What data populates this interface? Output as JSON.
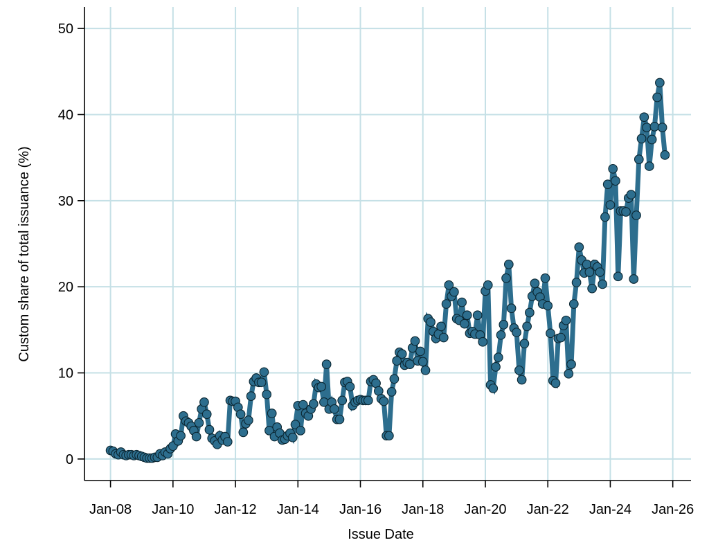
{
  "chart_data": {
    "type": "line",
    "title": "",
    "xlabel": "Issue Date",
    "ylabel": "Custom share of total issuance (%)",
    "xlim": [
      "2007-03",
      "2026-08"
    ],
    "ylim": [
      -2.5,
      52.5
    ],
    "y_ticks": [
      0,
      10,
      20,
      30,
      40,
      50
    ],
    "x_ticks": [
      {
        "date": "2008-01",
        "label": "Jan-08"
      },
      {
        "date": "2010-01",
        "label": "Jan-10"
      },
      {
        "date": "2012-01",
        "label": "Jan-12"
      },
      {
        "date": "2014-01",
        "label": "Jan-14"
      },
      {
        "date": "2016-01",
        "label": "Jan-16"
      },
      {
        "date": "2018-01",
        "label": "Jan-18"
      },
      {
        "date": "2020-01",
        "label": "Jan-20"
      },
      {
        "date": "2022-01",
        "label": "Jan-22"
      },
      {
        "date": "2024-01",
        "label": "Jan-24"
      },
      {
        "date": "2026-01",
        "label": "Jan-26"
      }
    ],
    "grid": true,
    "legend": "none",
    "series": [
      {
        "color": "#2d6e8e",
        "marker": "circle",
        "points": [
          [
            "2008-01",
            1.0
          ],
          [
            "2008-02",
            0.9
          ],
          [
            "2008-03",
            0.6
          ],
          [
            "2008-04",
            0.5
          ],
          [
            "2008-05",
            0.8
          ],
          [
            "2008-06",
            0.5
          ],
          [
            "2008-07",
            0.4
          ],
          [
            "2008-08",
            0.5
          ],
          [
            "2008-09",
            0.5
          ],
          [
            "2008-10",
            0.4
          ],
          [
            "2008-11",
            0.5
          ],
          [
            "2008-12",
            0.4
          ],
          [
            "2009-01",
            0.3
          ],
          [
            "2009-02",
            0.2
          ],
          [
            "2009-03",
            0.1
          ],
          [
            "2009-04",
            0.1
          ],
          [
            "2009-05",
            0.1
          ],
          [
            "2009-06",
            0.2
          ],
          [
            "2009-07",
            0.2
          ],
          [
            "2009-08",
            0.6
          ],
          [
            "2009-09",
            0.4
          ],
          [
            "2009-10",
            0.8
          ],
          [
            "2009-11",
            0.6
          ],
          [
            "2009-12",
            1.2
          ],
          [
            "2010-01",
            1.5
          ],
          [
            "2010-02",
            2.9
          ],
          [
            "2010-03",
            2.1
          ],
          [
            "2010-04",
            2.7
          ],
          [
            "2010-05",
            5.0
          ],
          [
            "2010-06",
            4.4
          ],
          [
            "2010-07",
            4.2
          ],
          [
            "2010-08",
            3.8
          ],
          [
            "2010-09",
            3.3
          ],
          [
            "2010-10",
            2.6
          ],
          [
            "2010-11",
            4.2
          ],
          [
            "2010-12",
            5.8
          ],
          [
            "2011-01",
            6.6
          ],
          [
            "2011-02",
            5.2
          ],
          [
            "2011-03",
            3.4
          ],
          [
            "2011-04",
            2.4
          ],
          [
            "2011-05",
            2.1
          ],
          [
            "2011-06",
            1.7
          ],
          [
            "2011-07",
            2.7
          ],
          [
            "2011-08",
            2.2
          ],
          [
            "2011-09",
            2.6
          ],
          [
            "2011-10",
            2.0
          ],
          [
            "2011-11",
            6.8
          ],
          [
            "2011-12",
            6.7
          ],
          [
            "2012-01",
            6.7
          ],
          [
            "2012-02",
            6.0
          ],
          [
            "2012-03",
            5.2
          ],
          [
            "2012-04",
            3.1
          ],
          [
            "2012-05",
            4.1
          ],
          [
            "2012-06",
            4.5
          ],
          [
            "2012-07",
            7.3
          ],
          [
            "2012-08",
            9.0
          ],
          [
            "2012-09",
            9.4
          ],
          [
            "2012-10",
            8.9
          ],
          [
            "2012-11",
            8.9
          ],
          [
            "2012-12",
            10.1
          ],
          [
            "2013-01",
            7.5
          ],
          [
            "2013-02",
            3.3
          ],
          [
            "2013-03",
            5.3
          ],
          [
            "2013-04",
            2.6
          ],
          [
            "2013-05",
            3.7
          ],
          [
            "2013-06",
            3.0
          ],
          [
            "2013-07",
            2.2
          ],
          [
            "2013-08",
            2.3
          ],
          [
            "2013-09",
            2.7
          ],
          [
            "2013-10",
            3.0
          ],
          [
            "2013-11",
            2.5
          ],
          [
            "2013-12",
            4.0
          ],
          [
            "2014-01",
            6.2
          ],
          [
            "2014-02",
            3.3
          ],
          [
            "2014-03",
            6.3
          ],
          [
            "2014-04",
            5.3
          ],
          [
            "2014-05",
            5.0
          ],
          [
            "2014-06",
            5.8
          ],
          [
            "2014-07",
            6.4
          ],
          [
            "2014-08",
            8.7
          ],
          [
            "2014-09",
            8.3
          ],
          [
            "2014-10",
            8.4
          ],
          [
            "2014-11",
            6.6
          ],
          [
            "2014-12",
            11.0
          ],
          [
            "2015-01",
            5.8
          ],
          [
            "2015-02",
            6.6
          ],
          [
            "2015-03",
            5.8
          ],
          [
            "2015-04",
            4.6
          ],
          [
            "2015-05",
            4.6
          ],
          [
            "2015-06",
            6.8
          ],
          [
            "2015-07",
            8.9
          ],
          [
            "2015-08",
            9.0
          ],
          [
            "2015-09",
            8.4
          ],
          [
            "2015-10",
            6.2
          ],
          [
            "2015-11",
            6.6
          ],
          [
            "2015-12",
            6.8
          ],
          [
            "2016-01",
            6.9
          ],
          [
            "2016-02",
            6.8
          ],
          [
            "2016-03",
            6.8
          ],
          [
            "2016-04",
            6.8
          ],
          [
            "2016-05",
            9.0
          ],
          [
            "2016-06",
            9.2
          ],
          [
            "2016-07",
            8.8
          ],
          [
            "2016-08",
            7.9
          ],
          [
            "2016-09",
            7.0
          ],
          [
            "2016-10",
            6.7
          ],
          [
            "2016-11",
            2.7
          ],
          [
            "2016-12",
            2.7
          ],
          [
            "2017-01",
            7.8
          ],
          [
            "2017-02",
            9.3
          ],
          [
            "2017-03",
            11.4
          ],
          [
            "2017-04",
            12.4
          ],
          [
            "2017-05",
            12.2
          ],
          [
            "2017-06",
            10.9
          ],
          [
            "2017-07",
            11.2
          ],
          [
            "2017-08",
            11.0
          ],
          [
            "2017-09",
            12.9
          ],
          [
            "2017-10",
            13.7
          ],
          [
            "2017-11",
            11.4
          ],
          [
            "2017-12",
            12.5
          ],
          [
            "2018-01",
            11.3
          ],
          [
            "2018-02",
            10.3
          ],
          [
            "2018-03",
            16.3
          ],
          [
            "2018-04",
            15.9
          ],
          [
            "2018-05",
            14.8
          ],
          [
            "2018-06",
            14.0
          ],
          [
            "2018-07",
            14.5
          ],
          [
            "2018-08",
            15.4
          ],
          [
            "2018-09",
            14.1
          ],
          [
            "2018-10",
            18.0
          ],
          [
            "2018-11",
            20.2
          ],
          [
            "2018-12",
            18.9
          ],
          [
            "2019-01",
            19.4
          ],
          [
            "2019-02",
            16.3
          ],
          [
            "2019-03",
            16.1
          ],
          [
            "2019-04",
            18.2
          ],
          [
            "2019-05",
            15.7
          ],
          [
            "2019-06",
            16.7
          ],
          [
            "2019-07",
            14.6
          ],
          [
            "2019-08",
            14.8
          ],
          [
            "2019-09",
            14.5
          ],
          [
            "2019-10",
            16.7
          ],
          [
            "2019-11",
            14.4
          ],
          [
            "2019-12",
            13.6
          ],
          [
            "2020-01",
            19.5
          ],
          [
            "2020-02",
            20.2
          ],
          [
            "2020-03",
            8.6
          ],
          [
            "2020-04",
            8.2
          ],
          [
            "2020-05",
            10.7
          ],
          [
            "2020-06",
            11.8
          ],
          [
            "2020-07",
            14.4
          ],
          [
            "2020-08",
            15.6
          ],
          [
            "2020-09",
            21.0
          ],
          [
            "2020-10",
            22.6
          ],
          [
            "2020-11",
            17.5
          ],
          [
            "2020-12",
            15.2
          ],
          [
            "2021-01",
            14.7
          ],
          [
            "2021-02",
            10.3
          ],
          [
            "2021-03",
            9.2
          ],
          [
            "2021-04",
            13.4
          ],
          [
            "2021-05",
            15.4
          ],
          [
            "2021-06",
            17.0
          ],
          [
            "2021-07",
            18.9
          ],
          [
            "2021-08",
            20.4
          ],
          [
            "2021-09",
            19.4
          ],
          [
            "2021-10",
            18.8
          ],
          [
            "2021-11",
            18.0
          ],
          [
            "2021-12",
            21.0
          ],
          [
            "2022-01",
            17.8
          ],
          [
            "2022-02",
            14.6
          ],
          [
            "2022-03",
            9.1
          ],
          [
            "2022-04",
            8.8
          ],
          [
            "2022-05",
            14.0
          ],
          [
            "2022-06",
            14.1
          ],
          [
            "2022-07",
            15.5
          ],
          [
            "2022-08",
            16.1
          ],
          [
            "2022-09",
            9.9
          ],
          [
            "2022-10",
            11.0
          ],
          [
            "2022-11",
            18.0
          ],
          [
            "2022-12",
            20.5
          ],
          [
            "2023-01",
            24.6
          ],
          [
            "2023-02",
            23.1
          ],
          [
            "2023-03",
            21.6
          ],
          [
            "2023-04",
            22.6
          ],
          [
            "2023-05",
            21.7
          ],
          [
            "2023-06",
            19.8
          ],
          [
            "2023-07",
            22.6
          ],
          [
            "2023-08",
            22.3
          ],
          [
            "2023-09",
            21.7
          ],
          [
            "2023-10",
            20.3
          ],
          [
            "2023-11",
            28.1
          ],
          [
            "2023-12",
            31.9
          ],
          [
            "2024-01",
            29.5
          ],
          [
            "2024-02",
            33.7
          ],
          [
            "2024-03",
            32.3
          ],
          [
            "2024-04",
            21.2
          ],
          [
            "2024-05",
            28.8
          ],
          [
            "2024-06",
            28.8
          ],
          [
            "2024-07",
            28.7
          ],
          [
            "2024-08",
            30.3
          ],
          [
            "2024-09",
            30.7
          ],
          [
            "2024-10",
            20.9
          ],
          [
            "2024-11",
            28.3
          ],
          [
            "2024-12",
            34.8
          ],
          [
            "2025-01",
            37.2
          ],
          [
            "2025-02",
            39.7
          ],
          [
            "2025-03",
            38.5
          ],
          [
            "2025-04",
            34.0
          ],
          [
            "2025-05",
            37.1
          ],
          [
            "2025-06",
            38.6
          ],
          [
            "2025-07",
            42.0
          ],
          [
            "2025-08",
            43.7
          ],
          [
            "2025-09",
            38.5
          ],
          [
            "2025-10",
            35.3
          ]
        ]
      }
    ]
  }
}
